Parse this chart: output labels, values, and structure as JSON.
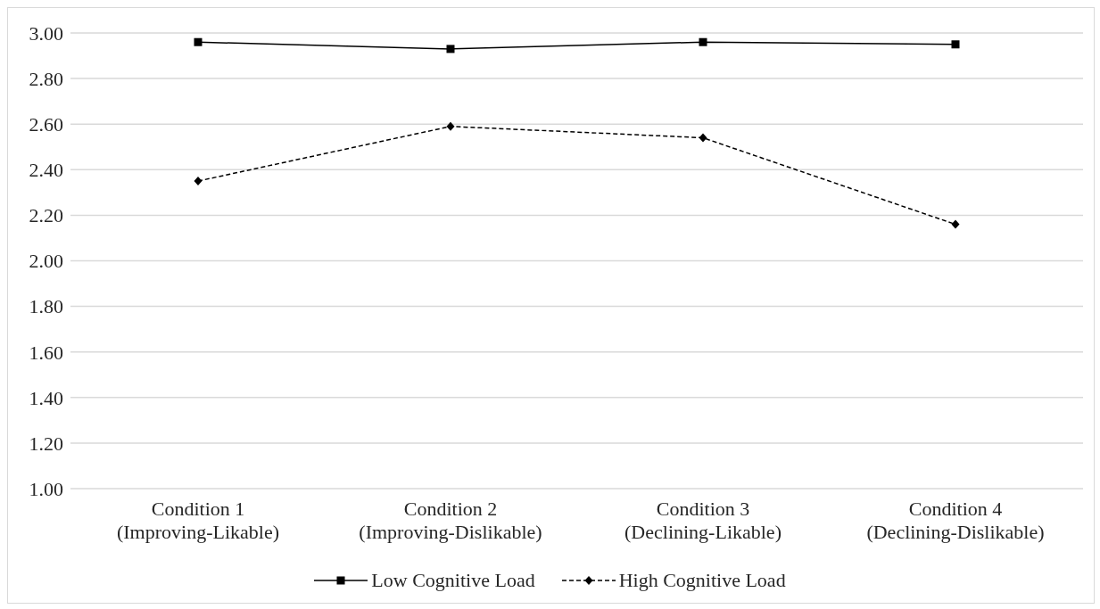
{
  "chart_data": {
    "type": "line",
    "categories": [
      "Condition 1\n(Improving-Likable)",
      "Condition 2\n(Improving-Dislikable)",
      "Condition 3\n(Declining-Likable)",
      "Condition 4\n(Declining-Dislikable)"
    ],
    "series": [
      {
        "name": "Low Cognitive Load",
        "color": "#000000",
        "values": [
          2.96,
          2.93,
          2.96,
          2.95
        ],
        "marker": "square",
        "line_style": "solid"
      },
      {
        "name": "High Cognitive Load",
        "color": "#000000",
        "values": [
          2.35,
          2.59,
          2.54,
          2.16
        ],
        "marker": "diamond",
        "line_style": "dashed"
      }
    ],
    "ylim": [
      1,
      3
    ],
    "yticks": [
      {
        "value": 1,
        "label": "1.00"
      },
      {
        "value": 1.2,
        "label": "1.20"
      },
      {
        "value": 1.4,
        "label": "1.40"
      },
      {
        "value": 1.6,
        "label": "1.60"
      },
      {
        "value": 1.8,
        "label": "1.80"
      },
      {
        "value": 2,
        "label": "2.00"
      },
      {
        "value": 2.2,
        "label": "2.20"
      },
      {
        "value": 2.4,
        "label": "2.40"
      },
      {
        "value": 2.6,
        "label": "2.60"
      },
      {
        "value": 2.8,
        "label": "2.80"
      },
      {
        "value": 3,
        "label": "3.00"
      }
    ],
    "grid": "y",
    "legend": "bottom"
  }
}
